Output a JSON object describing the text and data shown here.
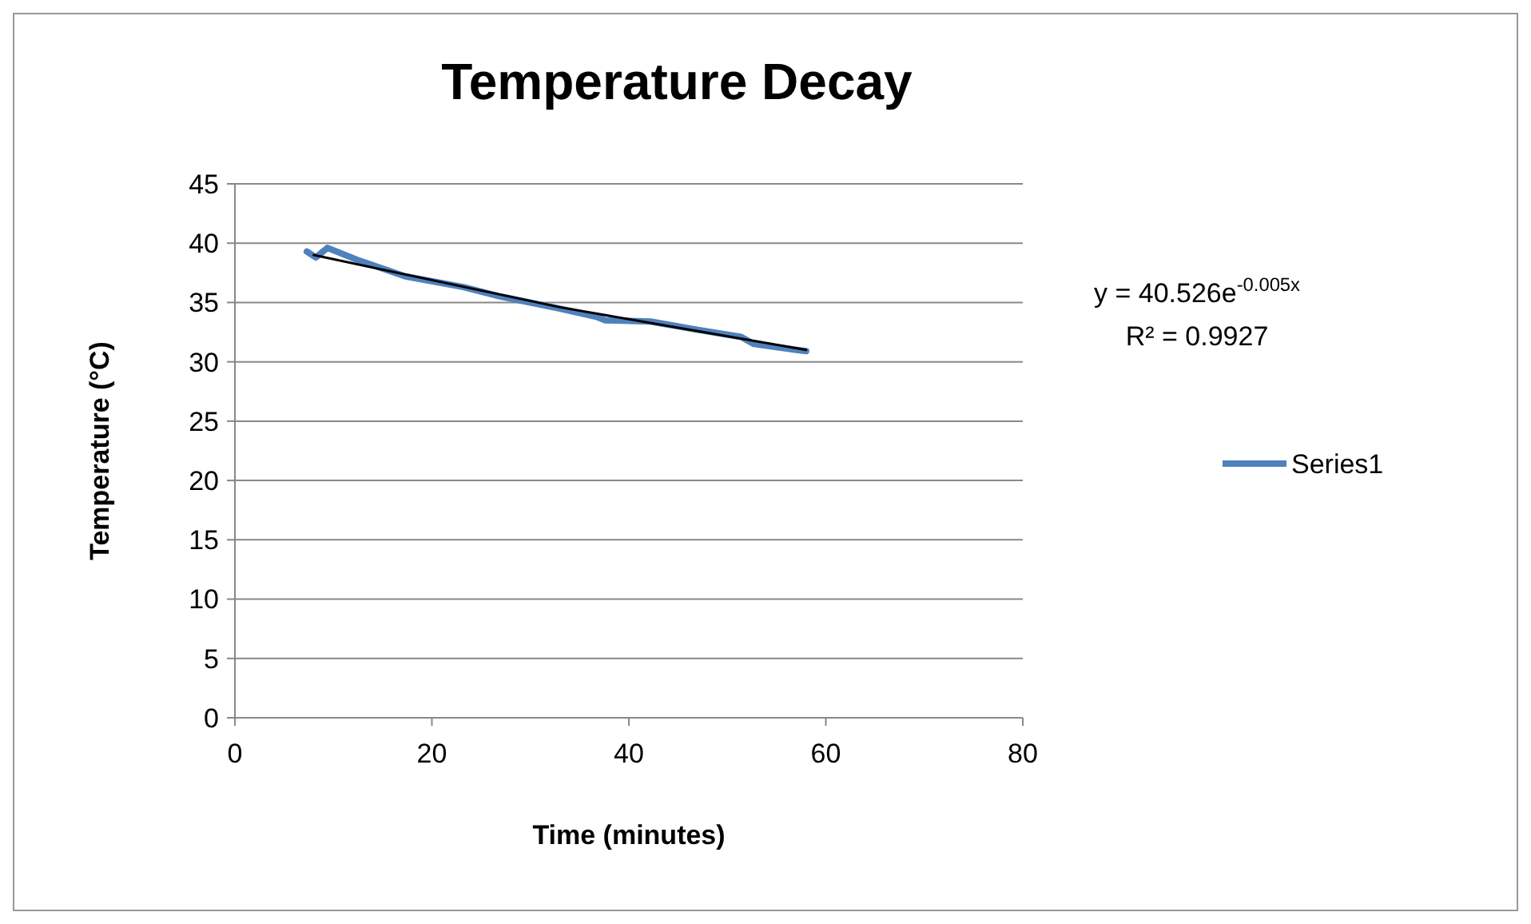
{
  "chart_data": {
    "type": "line",
    "title": "Temperature Decay",
    "xlabel": "Time (minutes)",
    "ylabel": "Temperature (°C)",
    "xlim": [
      0,
      80
    ],
    "xticks": [
      0,
      20,
      40,
      60,
      80
    ],
    "ylim": [
      0,
      45
    ],
    "yticks": [
      0,
      5,
      10,
      15,
      20,
      25,
      30,
      35,
      40,
      45
    ],
    "grid": "y",
    "legend": "right",
    "marker": "none",
    "series": [
      {
        "name": "Series1",
        "color": "#4f81bd",
        "x": [
          7.3,
          8.2,
          9.4,
          12.4,
          17.3,
          23.2,
          27.0,
          32.9,
          36.7,
          37.6,
          42.2,
          47.0,
          51.4,
          52.7,
          57.0,
          58.0
        ],
        "values": [
          39.3,
          38.8,
          39.6,
          38.6,
          37.2,
          36.3,
          35.5,
          34.5,
          33.8,
          33.5,
          33.4,
          32.7,
          32.1,
          31.5,
          31.0,
          30.9
        ]
      },
      {
        "type": "line",
        "color": "#000000",
        "x": [
          8,
          33,
          58
        ],
        "values": [
          39.0,
          34.6,
          31.0
        ]
      }
    ],
    "annotations": [
      "y = 40.526e$^{-0.005x}$",
      "R² = 0.9927"
    ]
  }
}
